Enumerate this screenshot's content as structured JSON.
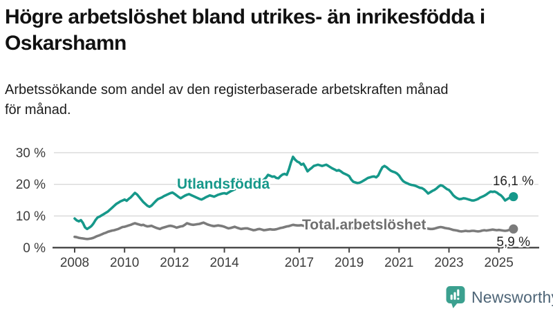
{
  "title": {
    "text": "Högre arbetslöshet bland utrikes- än inrikesfödda i Oskarshamn",
    "lines": [
      "Högre arbetslöshet bland utrikes- än inrikesfödda i",
      "Oskarshamn"
    ]
  },
  "subtitle": {
    "text": "Arbetssökande som andel av den registerbaserade arbetskraften månad för månad.",
    "lines": [
      "Arbetssökande som andel av den registerbaserade arbetskraften månad",
      "för månad."
    ]
  },
  "branding": {
    "logo_text": "Newsworthy",
    "logo_icon": "bar-chart-speech-bubble-icon",
    "logo_icon_color": "#3ba08f",
    "logo_text_color": "#4e6577"
  },
  "colors": {
    "series_foreign": "#16988a",
    "series_total": "#7b7b7b",
    "grid": "#d9d9d9",
    "axis": "#454545",
    "text": "#1a1a1a"
  },
  "chart_data": {
    "type": "line",
    "description": "Arbetssökande som andel av den registerbaserade arbetskraften månad för månad",
    "frequency": "monthly",
    "x_start": "2008-01",
    "x_end": "2025-08",
    "grid": "horizontal-only",
    "ylim": [
      0,
      33
    ],
    "yticks": [
      {
        "label": "0 %",
        "value": 0
      },
      {
        "label": "10 %",
        "value": 10
      },
      {
        "label": "20 %",
        "value": 20
      },
      {
        "label": "30 %",
        "value": 30
      }
    ],
    "xticks": [
      {
        "label": "2008",
        "year": 2008
      },
      {
        "label": "2010",
        "year": 2010
      },
      {
        "label": "2012",
        "year": 2012
      },
      {
        "label": "2014",
        "year": 2014
      },
      {
        "label": "2017",
        "year": 2017
      },
      {
        "label": "2019",
        "year": 2019
      },
      {
        "label": "2021",
        "year": 2021
      },
      {
        "label": "2023",
        "year": 2023
      },
      {
        "label": "2025",
        "year": 2025
      }
    ],
    "series": [
      {
        "name": "Utlandsfödda",
        "color": "#16988a",
        "end_label": "16,1 %",
        "end_value": 16.1,
        "values": [
          9.2,
          8.6,
          8.3,
          8.7,
          7.8,
          6.4,
          5.9,
          6.3,
          6.8,
          7.6,
          8.7,
          9.5,
          9.8,
          10.2,
          10.6,
          11.0,
          11.4,
          12.0,
          12.6,
          13.2,
          13.8,
          14.2,
          14.6,
          14.9,
          15.2,
          14.8,
          15.4,
          15.9,
          16.6,
          17.3,
          16.8,
          16.0,
          15.2,
          14.4,
          13.8,
          13.2,
          12.9,
          13.3,
          14.0,
          14.7,
          15.3,
          15.6,
          15.9,
          16.3,
          16.6,
          16.9,
          17.2,
          17.4,
          17.0,
          16.5,
          16.0,
          15.6,
          16.0,
          16.4,
          16.7,
          16.9,
          16.6,
          16.3,
          16.0,
          15.7,
          15.4,
          15.2,
          15.5,
          15.9,
          16.2,
          16.5,
          16.3,
          16.1,
          16.4,
          16.7,
          16.9,
          17.1,
          17.2,
          17.0,
          17.4,
          17.8,
          18.1,
          18.4,
          18.8,
          19.1,
          19.5,
          20.0,
          20.5,
          21.0,
          21.4,
          21.8,
          21.5,
          21.2,
          20.8,
          20.4,
          20.8,
          21.5,
          22.1,
          23.0,
          22.7,
          22.4,
          22.5,
          22.0,
          21.9,
          22.6,
          23.1,
          23.3,
          23.0,
          24.7,
          26.9,
          28.7,
          27.8,
          27.2,
          26.9,
          26.2,
          26.5,
          25.4,
          24.1,
          24.7,
          25.2,
          25.8,
          26.0,
          26.2,
          26.0,
          25.8,
          26.0,
          26.2,
          25.8,
          25.4,
          25.0,
          24.7,
          24.3,
          24.5,
          24.1,
          23.6,
          23.3,
          23.0,
          22.6,
          21.5,
          20.8,
          20.6,
          20.4,
          20.5,
          20.8,
          21.2,
          21.6,
          22.0,
          22.2,
          22.4,
          22.5,
          22.2,
          22.8,
          24.2,
          25.4,
          25.8,
          25.4,
          24.8,
          24.3,
          24.0,
          23.8,
          23.4,
          22.8,
          21.8,
          21.0,
          20.6,
          20.3,
          20.0,
          19.8,
          19.7,
          19.5,
          19.2,
          18.9,
          18.8,
          18.4,
          17.8,
          17.1,
          17.5,
          17.9,
          18.2,
          18.7,
          19.3,
          19.7,
          19.5,
          19.0,
          18.5,
          18.2,
          17.5,
          16.6,
          16.0,
          15.6,
          15.3,
          15.4,
          15.6,
          15.5,
          15.3,
          15.1,
          14.9,
          14.9,
          15.1,
          15.4,
          15.8,
          16.1,
          16.4,
          16.8,
          17.3,
          17.7,
          17.6,
          17.7,
          17.4,
          16.9,
          16.5,
          15.8,
          14.9,
          15.3,
          15.7,
          16.0,
          16.1
        ]
      },
      {
        "name": "Total arbetslöshet",
        "color": "#7b7b7b",
        "end_label": "5,9 %",
        "end_value": 5.9,
        "values": [
          3.4,
          3.3,
          3.1,
          3.0,
          2.9,
          2.8,
          2.7,
          2.8,
          2.9,
          3.1,
          3.4,
          3.7,
          3.9,
          4.2,
          4.5,
          4.7,
          5.0,
          5.2,
          5.4,
          5.5,
          5.7,
          5.9,
          6.2,
          6.5,
          6.6,
          6.8,
          7.0,
          7.2,
          7.5,
          7.7,
          7.5,
          7.3,
          7.1,
          7.2,
          6.9,
          6.7,
          6.8,
          6.9,
          6.6,
          6.3,
          6.1,
          5.9,
          6.2,
          6.4,
          6.6,
          6.8,
          6.9,
          6.8,
          6.6,
          6.3,
          6.5,
          6.7,
          6.8,
          7.2,
          7.7,
          7.5,
          7.3,
          7.2,
          7.3,
          7.4,
          7.5,
          7.7,
          7.9,
          7.6,
          7.3,
          7.1,
          6.9,
          6.8,
          6.9,
          7.0,
          6.9,
          6.8,
          6.6,
          6.3,
          6.1,
          6.2,
          6.4,
          6.6,
          6.3,
          6.1,
          5.9,
          6.0,
          6.1,
          6.1,
          5.9,
          5.7,
          5.5,
          5.6,
          5.8,
          5.9,
          5.7,
          5.5,
          5.6,
          5.7,
          5.8,
          5.7,
          5.7,
          5.8,
          6.0,
          6.2,
          6.3,
          6.5,
          6.7,
          6.8,
          7.0,
          7.2,
          7.1,
          7.0,
          7.0,
          7.1,
          6.9,
          6.7,
          6.5,
          6.4,
          6.5,
          6.6,
          6.7,
          6.6,
          6.5,
          6.4,
          6.5,
          6.6,
          6.4,
          6.2,
          6.1,
          6.0,
          6.1,
          6.2,
          6.3,
          6.2,
          6.1,
          6.0,
          6.1,
          6.2,
          6.1,
          6.0,
          5.9,
          5.9,
          6.0,
          6.1,
          6.2,
          6.3,
          6.4,
          6.5,
          6.6,
          6.7,
          7.0,
          7.6,
          8.0,
          8.2,
          8.1,
          7.9,
          7.8,
          7.7,
          7.6,
          7.5,
          7.6,
          7.5,
          7.3,
          7.1,
          6.9,
          6.7,
          6.6,
          6.5,
          6.4,
          6.3,
          6.2,
          6.3,
          6.2,
          6.1,
          6.0,
          5.9,
          5.9,
          6.0,
          6.2,
          6.4,
          6.5,
          6.4,
          6.2,
          6.1,
          6.0,
          5.8,
          5.6,
          5.5,
          5.4,
          5.2,
          5.1,
          5.2,
          5.3,
          5.2,
          5.2,
          5.3,
          5.3,
          5.2,
          5.1,
          5.2,
          5.4,
          5.5,
          5.4,
          5.5,
          5.6,
          5.7,
          5.6,
          5.5,
          5.6,
          5.5,
          5.4,
          5.3,
          5.4,
          5.6,
          5.8,
          5.9
        ]
      }
    ]
  }
}
